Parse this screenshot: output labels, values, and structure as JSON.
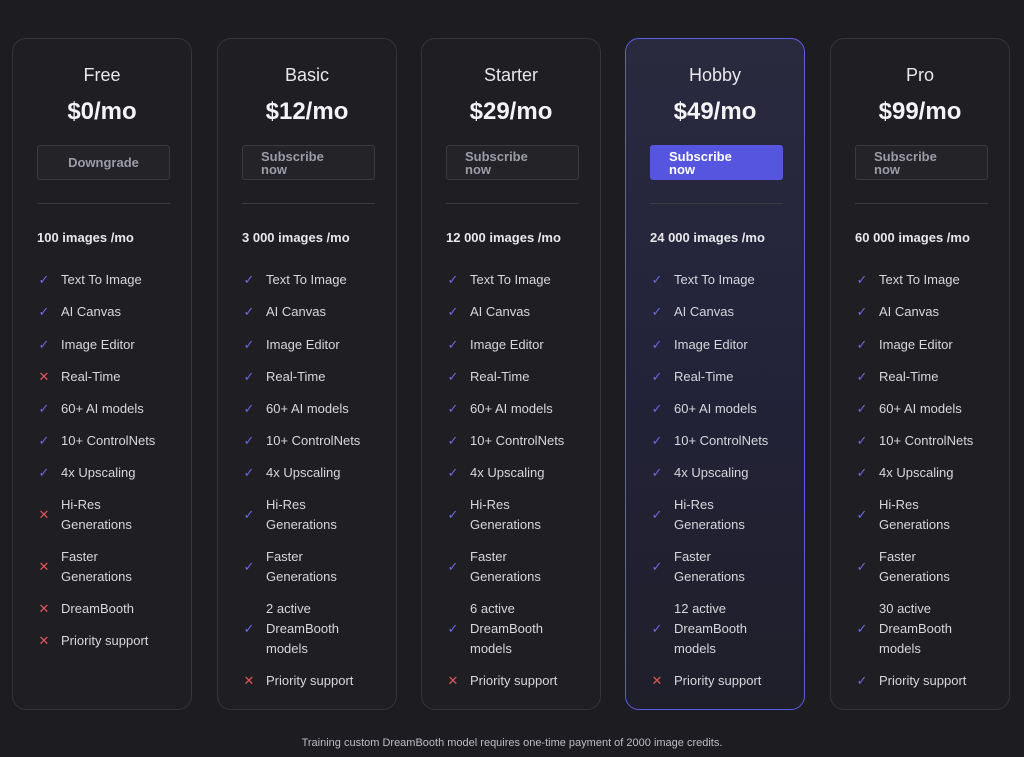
{
  "plans": [
    {
      "name": "Free",
      "price": "$0/mo",
      "button": "Downgrade",
      "button_style": "secondary",
      "credits": "100 images /mo",
      "features": [
        {
          "label": "Text To Image",
          "icon": "check-icon"
        },
        {
          "label": "AI Canvas",
          "icon": "check-icon"
        },
        {
          "label": "Image Editor",
          "icon": "check-icon"
        },
        {
          "label": "Real-Time",
          "icon": "cross-icon"
        },
        {
          "label": "60+ AI models",
          "icon": "check-icon"
        },
        {
          "label": "10+ ControlNets",
          "icon": "check-icon"
        },
        {
          "label": "4x Upscaling",
          "icon": "check-icon"
        },
        {
          "label": "Hi-Res\nGenerations",
          "icon": "cross-icon"
        },
        {
          "label": "Faster\nGenerations",
          "icon": "cross-icon"
        },
        {
          "label": "DreamBooth",
          "icon": "cross-icon"
        },
        {
          "label": "Priority support",
          "icon": "cross-icon"
        }
      ]
    },
    {
      "name": "Basic",
      "price": "$12/mo",
      "button": "Subscribe\nnow",
      "button_style": "secondary",
      "credits": "3 000 images /mo",
      "features": [
        {
          "label": "Text To Image",
          "icon": "check-icon"
        },
        {
          "label": "AI Canvas",
          "icon": "check-icon"
        },
        {
          "label": "Image Editor",
          "icon": "check-icon"
        },
        {
          "label": "Real-Time",
          "icon": "check-icon"
        },
        {
          "label": "60+ AI models",
          "icon": "check-icon"
        },
        {
          "label": "10+ ControlNets",
          "icon": "check-icon"
        },
        {
          "label": "4x Upscaling",
          "icon": "check-icon"
        },
        {
          "label": "Hi-Res\nGenerations",
          "icon": "check-icon"
        },
        {
          "label": "Faster\nGenerations",
          "icon": "check-icon"
        },
        {
          "label": "2 active\nDreamBooth\nmodels",
          "icon": "check-icon"
        },
        {
          "label": "Priority support",
          "icon": "cross-icon"
        }
      ]
    },
    {
      "name": "Starter",
      "price": "$29/mo",
      "button": "Subscribe\nnow",
      "button_style": "secondary",
      "credits": "12 000 images /mo",
      "features": [
        {
          "label": "Text To Image",
          "icon": "check-icon"
        },
        {
          "label": "AI Canvas",
          "icon": "check-icon"
        },
        {
          "label": "Image Editor",
          "icon": "check-icon"
        },
        {
          "label": "Real-Time",
          "icon": "check-icon"
        },
        {
          "label": "60+ AI models",
          "icon": "check-icon"
        },
        {
          "label": "10+ ControlNets",
          "icon": "check-icon"
        },
        {
          "label": "4x Upscaling",
          "icon": "check-icon"
        },
        {
          "label": "Hi-Res\nGenerations",
          "icon": "check-icon"
        },
        {
          "label": "Faster\nGenerations",
          "icon": "check-icon"
        },
        {
          "label": "6 active\nDreamBooth\nmodels",
          "icon": "check-icon"
        },
        {
          "label": "Priority support",
          "icon": "cross-icon"
        }
      ]
    },
    {
      "name": "Hobby",
      "price": "$49/mo",
      "button": "Subscribe\nnow",
      "button_style": "primary",
      "featured": true,
      "credits": "24 000 images /mo",
      "features": [
        {
          "label": "Text To Image",
          "icon": "check-icon"
        },
        {
          "label": "AI Canvas",
          "icon": "check-icon"
        },
        {
          "label": "Image Editor",
          "icon": "check-icon"
        },
        {
          "label": "Real-Time",
          "icon": "check-icon"
        },
        {
          "label": "60+ AI models",
          "icon": "check-icon"
        },
        {
          "label": "10+ ControlNets",
          "icon": "check-icon"
        },
        {
          "label": "4x Upscaling",
          "icon": "check-icon"
        },
        {
          "label": "Hi-Res\nGenerations",
          "icon": "check-icon"
        },
        {
          "label": "Faster\nGenerations",
          "icon": "check-icon"
        },
        {
          "label": "12 active\nDreamBooth\nmodels",
          "icon": "check-icon"
        },
        {
          "label": "Priority support",
          "icon": "cross-icon"
        }
      ]
    },
    {
      "name": "Pro",
      "price": "$99/mo",
      "button": "Subscribe\nnow",
      "button_style": "secondary",
      "credits": "60 000 images /mo",
      "features": [
        {
          "label": "Text To Image",
          "icon": "check-icon"
        },
        {
          "label": "AI Canvas",
          "icon": "check-icon"
        },
        {
          "label": "Image Editor",
          "icon": "check-icon"
        },
        {
          "label": "Real-Time",
          "icon": "check-icon"
        },
        {
          "label": "60+ AI models",
          "icon": "check-icon"
        },
        {
          "label": "10+ ControlNets",
          "icon": "check-icon"
        },
        {
          "label": "4x Upscaling",
          "icon": "check-icon"
        },
        {
          "label": "Hi-Res\nGenerations",
          "icon": "check-icon"
        },
        {
          "label": "Faster\nGenerations",
          "icon": "check-icon"
        },
        {
          "label": "30 active\nDreamBooth\nmodels",
          "icon": "check-icon"
        },
        {
          "label": "Priority support",
          "icon": "check-icon"
        }
      ]
    }
  ],
  "footnote": "Training custom DreamBooth model requires one-time payment of 2000 image credits.",
  "colors": {
    "accent": "#5655e0",
    "check": "#6a6be8",
    "cross": "#e05555",
    "background": "#1c1c21"
  }
}
